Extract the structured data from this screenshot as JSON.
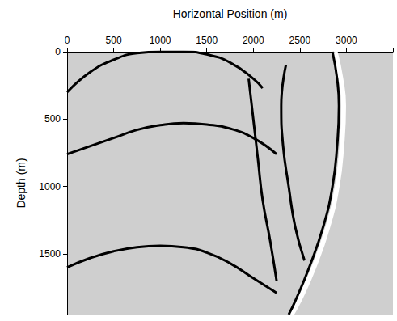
{
  "chart_data": {
    "type": "line",
    "x_label": "Horizontal Position (m)",
    "y_label": "Depth (m)",
    "xlim": [
      0,
      3500
    ],
    "xticks": [
      0,
      500,
      1000,
      1500,
      2000,
      2500,
      3000
    ],
    "ylim": [
      1950,
      0
    ],
    "yticks": [
      0,
      500,
      1000,
      1500
    ],
    "grid": false,
    "marker": "none",
    "line_style": "solid",
    "series": [
      {
        "color": "#ffffff",
        "x": [
          2880,
          2940,
          2970,
          2950,
          2900,
          2800,
          2650,
          2490,
          2410
        ],
        "values": [
          0,
          200,
          400,
          700,
          1000,
          1300,
          1600,
          1850,
          1950
        ]
      },
      {
        "color": "#000000",
        "x": [
          2850,
          2900,
          2920,
          2900,
          2850,
          2750,
          2600,
          2450,
          2380
        ],
        "values": [
          0,
          200,
          400,
          700,
          1000,
          1300,
          1600,
          1850,
          1950
        ]
      },
      {
        "color": "#000000",
        "x": [
          0,
          250,
          500,
          750,
          1000,
          1250,
          1500,
          1750,
          2000,
          2100
        ],
        "values": [
          300,
          150,
          60,
          10,
          0,
          0,
          20,
          80,
          200,
          270
        ]
      },
      {
        "color": "#000000",
        "x": [
          0,
          250,
          500,
          750,
          1000,
          1250,
          1500,
          1750,
          2000,
          2250
        ],
        "values": [
          760,
          700,
          640,
          580,
          545,
          530,
          540,
          570,
          640,
          760
        ]
      },
      {
        "color": "#000000",
        "x": [
          0,
          250,
          500,
          750,
          1000,
          1250,
          1500,
          1750,
          2000,
          2250
        ],
        "values": [
          1600,
          1530,
          1480,
          1450,
          1440,
          1450,
          1490,
          1570,
          1680,
          1790
        ]
      },
      {
        "color": "#000000",
        "x": [
          1950,
          2000,
          2050,
          2100,
          2180,
          2250
        ],
        "values": [
          200,
          500,
          800,
          1100,
          1400,
          1700
        ]
      },
      {
        "color": "#000000",
        "x": [
          2350,
          2300,
          2320,
          2380,
          2450,
          2550
        ],
        "values": [
          100,
          400,
          700,
          1000,
          1300,
          1550
        ]
      }
    ]
  }
}
